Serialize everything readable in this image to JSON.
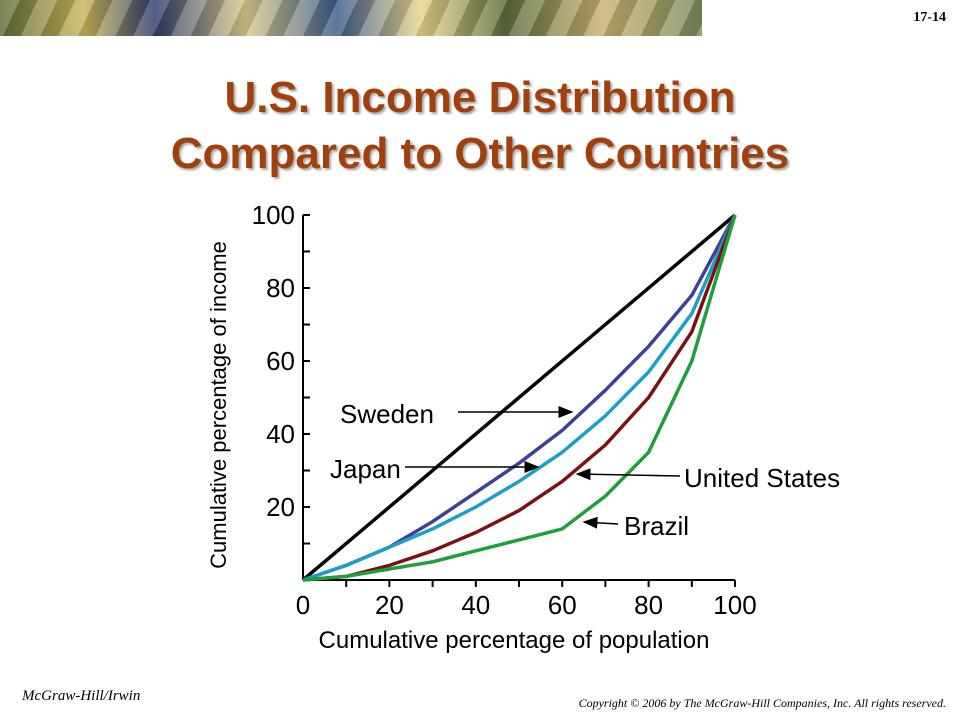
{
  "slide": {
    "number": "17-14",
    "title_line1": "U.S. Income Distribution",
    "title_line2": "Compared to Other Countries",
    "footer_left": "McGraw-Hill/Irwin",
    "footer_right": "Copyright © 2006 by The McGraw-Hill Companies, Inc. All rights reserved.",
    "banner_icon": "decorative-photo-banner"
  },
  "chart_data": {
    "type": "line",
    "title": "",
    "xlabel": "Cumulative percentage of population",
    "ylabel": "Cumulative percentage of income",
    "xlim": [
      0,
      100
    ],
    "ylim": [
      0,
      100
    ],
    "x_ticks": [
      "0",
      "20",
      "40",
      "60",
      "80",
      "100"
    ],
    "y_ticks": [
      "20",
      "40",
      "60",
      "80",
      "100"
    ],
    "grid": false,
    "legend": "annotations-with-arrows",
    "series": [
      {
        "label": "",
        "color": "#000000",
        "x": [
          0,
          100
        ],
        "y": [
          0,
          100
        ]
      },
      {
        "label": "Sweden",
        "color": "#3f3f9a",
        "x": [
          0,
          10,
          20,
          30,
          40,
          50,
          60,
          70,
          80,
          90,
          100
        ],
        "y": [
          0,
          4,
          9,
          16,
          24,
          32,
          41,
          52,
          64,
          78,
          100
        ]
      },
      {
        "label": "Japan",
        "color": "#1aa0c8",
        "x": [
          0,
          10,
          20,
          30,
          40,
          50,
          60,
          70,
          80,
          90,
          100
        ],
        "y": [
          0,
          4,
          9,
          14,
          20,
          27,
          35,
          45,
          57,
          73,
          100
        ]
      },
      {
        "label": "United States",
        "color": "#7b1113",
        "x": [
          0,
          10,
          20,
          30,
          40,
          50,
          60,
          70,
          80,
          90,
          100
        ],
        "y": [
          0,
          1,
          4,
          8,
          13,
          19,
          27,
          37,
          50,
          68,
          100
        ]
      },
      {
        "label": "Brazil",
        "color": "#1f9e3c",
        "x": [
          0,
          10,
          20,
          30,
          40,
          50,
          60,
          70,
          80,
          90,
          100
        ],
        "y": [
          0,
          1,
          3,
          5,
          8,
          11,
          14,
          23,
          35,
          60,
          100
        ]
      }
    ]
  }
}
